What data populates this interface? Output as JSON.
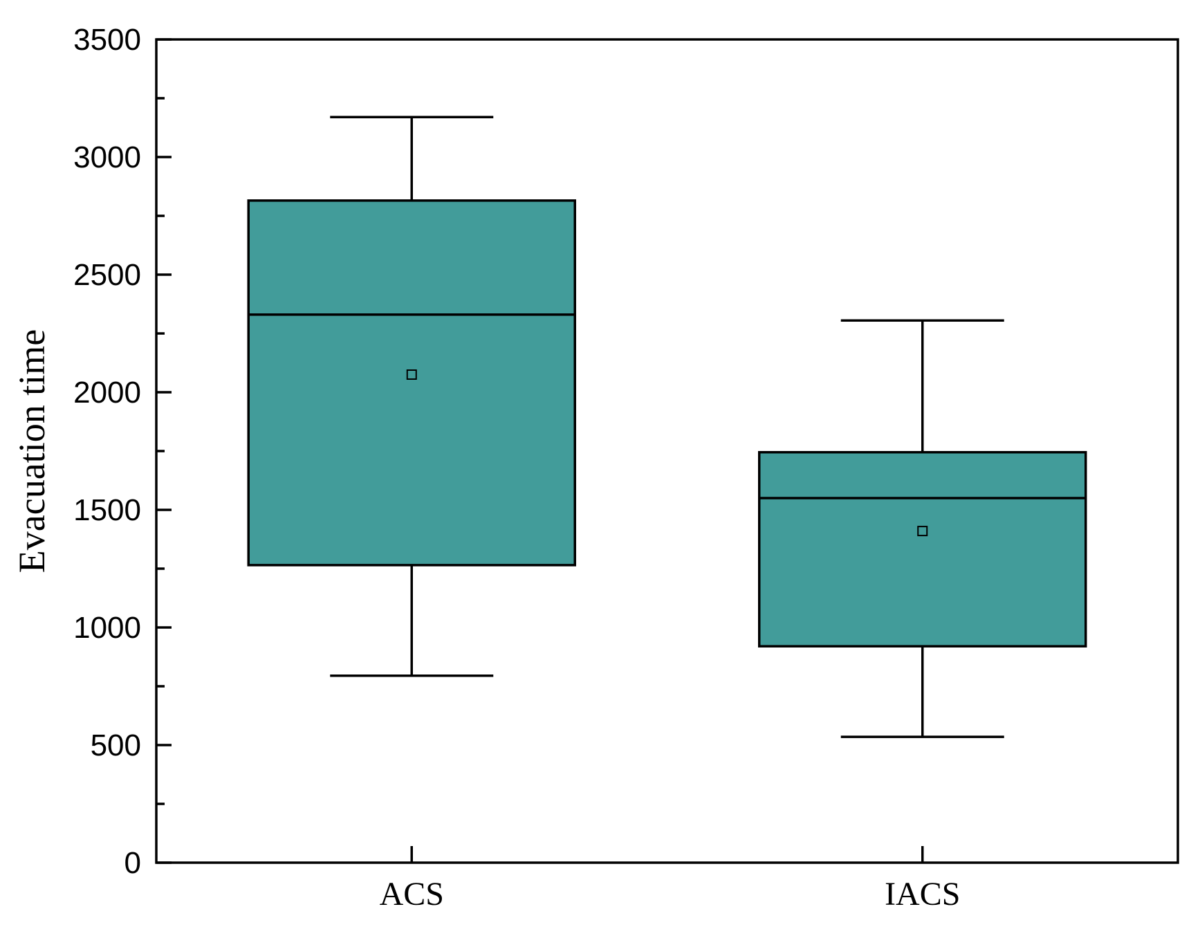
{
  "chart_data": {
    "type": "box",
    "categories": [
      "ACS",
      "IACS"
    ],
    "ylabel": "Evacuation time",
    "xlabel": "",
    "ylim": [
      0,
      3500
    ],
    "yticks": [
      "0",
      "500",
      "1000",
      "1500",
      "2000",
      "2500",
      "3000",
      "3500"
    ],
    "ytick_values": [
      0,
      500,
      1000,
      1500,
      2000,
      2500,
      3000,
      3500
    ],
    "minor_tick_step": 250,
    "grid": false,
    "box_color": "#429C9A",
    "series": [
      {
        "category": "ACS",
        "whisker_low": 795,
        "q1": 1265,
        "median": 2330,
        "q3": 2815,
        "whisker_high": 3170,
        "mean": 2075
      },
      {
        "category": "IACS",
        "whisker_low": 535,
        "q1": 920,
        "median": 1550,
        "q3": 1745,
        "whisker_high": 2305,
        "mean": 1410
      }
    ]
  }
}
